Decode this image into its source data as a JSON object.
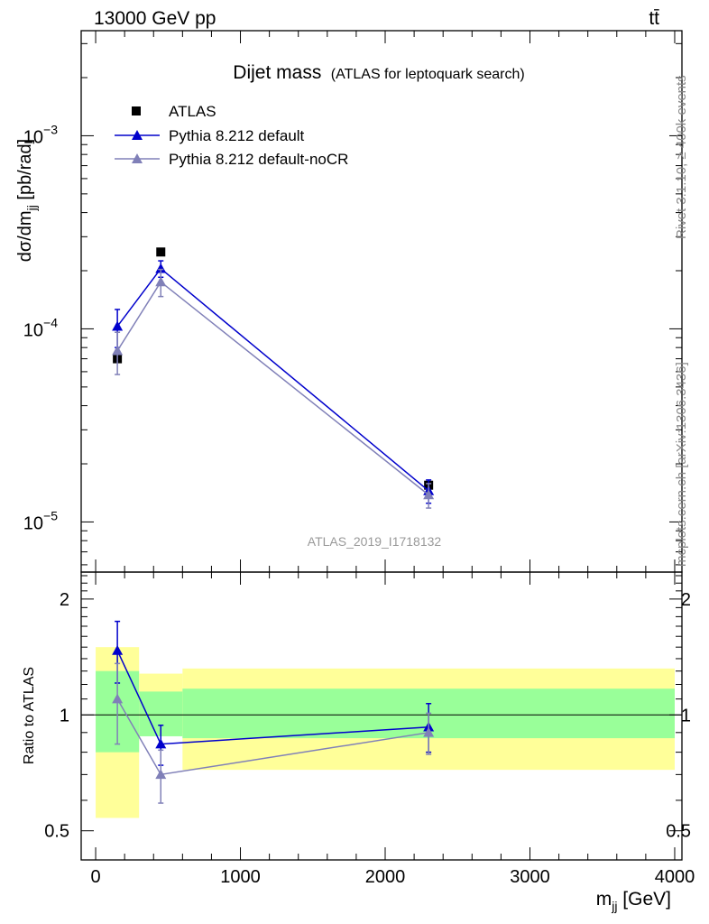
{
  "header": {
    "energy_label": "13000 GeV pp",
    "process_label": "tt̄"
  },
  "side_labels": {
    "rivet": "Rivet 3.1.10, ≥ 400k events",
    "mcplots": "mcplots.cern.ch [arXiv:1306.3436]"
  },
  "chart_data": {
    "type": "scatter",
    "title": "Dijet mass",
    "subtitle": "(ATLAS for leptoquark search)",
    "watermark": "ATLAS_2019_I1718132",
    "xlabel": "m_jj [GeV]",
    "ylabel": "dσ/dm_jj [pb/rad]",
    "ratio_ylabel": "Ratio to ATLAS",
    "xlim": [
      -100,
      4050
    ],
    "ylim": [
      5.5e-06,
      0.0035
    ],
    "yscale": "log",
    "ratio_ylim": [
      0.42,
      2.35
    ],
    "ratio_yscale": "log",
    "x_ticks": [
      0,
      1000,
      2000,
      3000,
      4000
    ],
    "x_tick_labels": [
      "0",
      "1000",
      "2000",
      "3000",
      "4000"
    ],
    "y_tick_labels": [
      "10^-5",
      "10^-4",
      "10^-3"
    ],
    "ratio_tick_labels": [
      "0.5",
      "1",
      "2"
    ],
    "x": [
      150,
      450,
      2300
    ],
    "bin_edges": [
      0,
      300,
      600,
      4000
    ],
    "series": [
      {
        "name": "ATLAS",
        "color": "#000000",
        "marker": "square",
        "values": [
          7e-05,
          0.00025,
          1.55e-05
        ]
      },
      {
        "name": "Pythia 8.212 default",
        "color": "#0000cc",
        "marker": "triangle",
        "values": [
          0.000103,
          0.000205,
          1.45e-05
        ],
        "errors": [
          2.3e-05,
          2e-05,
          2e-06
        ]
      },
      {
        "name": "Pythia 8.212 default-noCR",
        "color": "#8080b8",
        "marker": "triangle",
        "values": [
          7.7e-05,
          0.000175,
          1.38e-05
        ],
        "errors": [
          1.9e-05,
          2.8e-05,
          2e-06
        ]
      }
    ],
    "ratio_series": [
      {
        "name": "Pythia 8.212 default",
        "values": [
          1.47,
          0.84,
          0.93
        ],
        "err_lo": [
          1.21,
          0.74,
          0.8
        ],
        "err_hi": [
          1.75,
          0.94,
          1.07
        ]
      },
      {
        "name": "Pythia 8.212 default-noCR",
        "values": [
          1.1,
          0.7,
          0.9
        ],
        "err_lo": [
          0.84,
          0.59,
          0.79
        ],
        "err_hi": [
          1.36,
          0.81,
          1.01
        ]
      }
    ],
    "uncertainty_bands": {
      "inner": [
        [
          0.8,
          1.3
        ],
        [
          0.88,
          1.15
        ],
        [
          0.87,
          1.17
        ]
      ],
      "outer": [
        [
          0.54,
          1.5
        ],
        [
          0.9,
          1.28
        ],
        [
          0.72,
          1.32
        ]
      ],
      "inner_color": "#99ff99",
      "outer_color": "#ffff99"
    },
    "grid": false,
    "legend_position": "top-left"
  }
}
